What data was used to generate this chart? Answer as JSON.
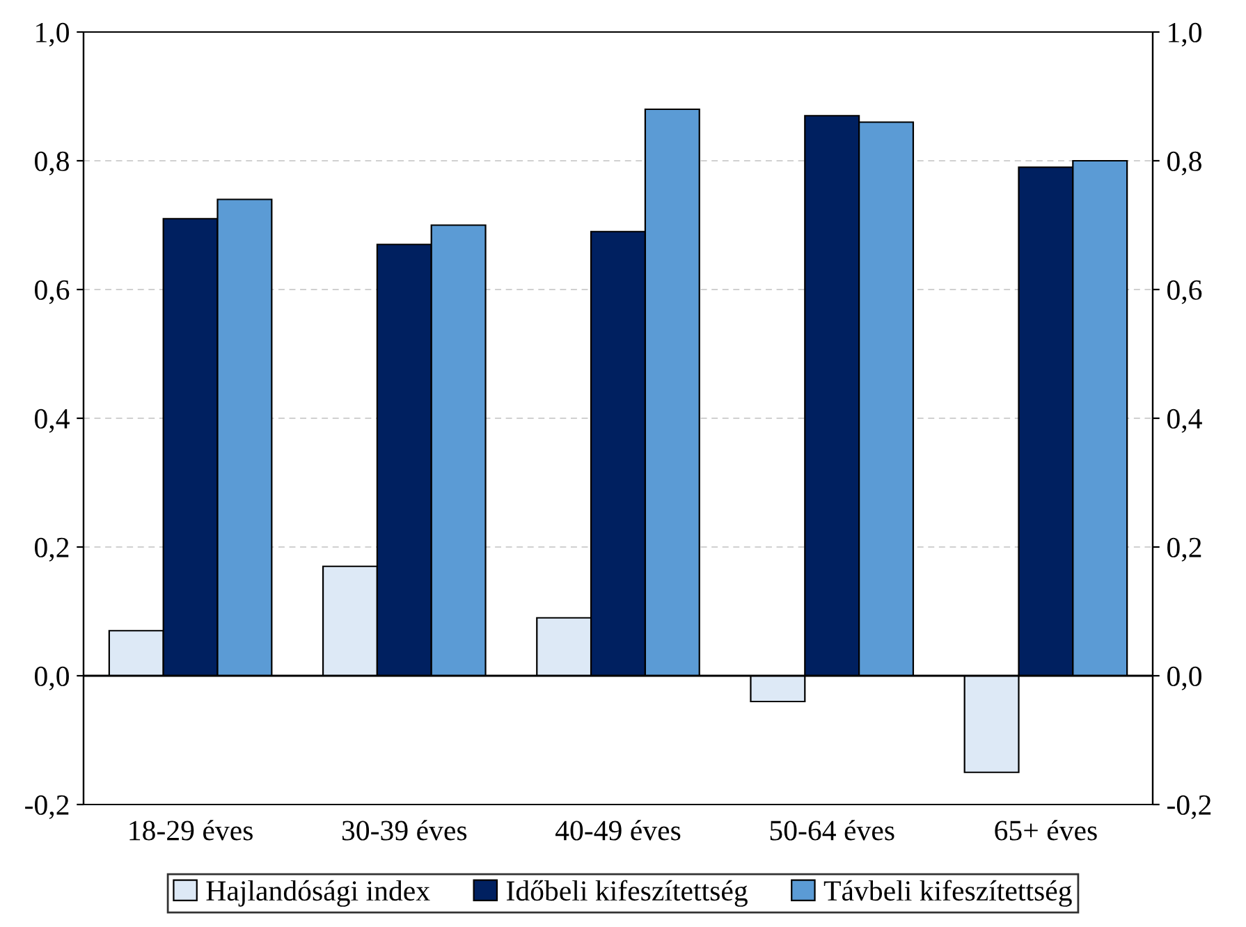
{
  "chart_data": {
    "type": "bar",
    "categories": [
      "18-29 éves",
      "30-39 éves",
      "40-49 éves",
      "50-64 éves",
      "65+ éves"
    ],
    "series": [
      {
        "name": "Hajlandósági index",
        "color": "#dde9f6",
        "values": [
          0.07,
          0.17,
          0.09,
          -0.04,
          -0.15
        ]
      },
      {
        "name": "Időbeli kifeszítettség",
        "color": "#002060",
        "values": [
          0.71,
          0.67,
          0.69,
          0.87,
          0.79
        ]
      },
      {
        "name": "Távbeli kifeszítettség",
        "color": "#5b9bd5",
        "values": [
          0.74,
          0.7,
          0.88,
          0.86,
          0.8
        ]
      }
    ],
    "ylim": [
      -0.2,
      1.0
    ],
    "yticks": [
      {
        "value": -0.2,
        "label": "-0,2"
      },
      {
        "value": 0.0,
        "label": "0,0"
      },
      {
        "value": 0.2,
        "label": "0,2"
      },
      {
        "value": 0.4,
        "label": "0,4"
      },
      {
        "value": 0.6,
        "label": "0,6"
      },
      {
        "value": 0.8,
        "label": "0,8"
      },
      {
        "value": 1.0,
        "label": "1,0"
      }
    ],
    "y2lim": [
      -0.2,
      1.0
    ],
    "y2ticks": [
      {
        "value": -0.2,
        "label": "-0,2"
      },
      {
        "value": 0.0,
        "label": "0,0"
      },
      {
        "value": 0.2,
        "label": "0,2"
      },
      {
        "value": 0.4,
        "label": "0,4"
      },
      {
        "value": 0.6,
        "label": "0,6"
      },
      {
        "value": 0.8,
        "label": "0,8"
      },
      {
        "value": 1.0,
        "label": "1,0"
      }
    ],
    "grid": "y",
    "legend": "bottom"
  }
}
